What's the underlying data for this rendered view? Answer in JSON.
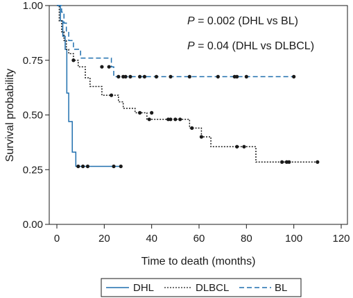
{
  "chart_data": {
    "type": "line",
    "subtype": "kaplan-meier-survival",
    "xlabel": "Time to death (months)",
    "ylabel": "Survival probability",
    "xlim": [
      0,
      120
    ],
    "ylim": [
      0,
      1
    ],
    "x_ticks": [
      0,
      20,
      40,
      60,
      80,
      100,
      120
    ],
    "x_tick_labels": [
      "0",
      "20",
      "40",
      "60",
      "80",
      "100",
      "120"
    ],
    "y_ticks": [
      0,
      0.25,
      0.5,
      0.75,
      1.0
    ],
    "y_tick_labels": [
      "0.00",
      "0.25",
      "0.50",
      "0.75",
      "1.00"
    ],
    "grid": false,
    "legend_position": "bottom",
    "annotations": [
      {
        "label": "P = 0.002 (DHL vs BL)",
        "italic_prefix": "P"
      },
      {
        "label": "P = 0.04 (DHL vs DLBCL)",
        "italic_prefix": "P"
      }
    ],
    "series": [
      {
        "name": "DHL",
        "color": "#1f6fae",
        "line_style": "solid",
        "steps": [
          [
            0,
            1.0
          ],
          [
            1.5,
            0.93
          ],
          [
            2.5,
            0.86
          ],
          [
            3.5,
            0.8
          ],
          [
            4.2,
            0.6
          ],
          [
            5.0,
            0.47
          ],
          [
            6.5,
            0.33
          ],
          [
            8.0,
            0.265
          ],
          [
            27,
            0.265
          ]
        ],
        "censored": [
          [
            9,
            0.265
          ],
          [
            11,
            0.265
          ],
          [
            13,
            0.265
          ],
          [
            24,
            0.265
          ],
          [
            27,
            0.265
          ]
        ]
      },
      {
        "name": "DLBCL",
        "color": "#1a1a1a",
        "line_style": "dotted",
        "steps": [
          [
            0,
            1.0
          ],
          [
            1,
            0.93
          ],
          [
            2,
            0.88
          ],
          [
            3,
            0.84
          ],
          [
            4,
            0.8
          ],
          [
            5,
            0.78
          ],
          [
            7,
            0.75
          ],
          [
            9,
            0.72
          ],
          [
            12,
            0.67
          ],
          [
            14,
            0.63
          ],
          [
            19,
            0.59
          ],
          [
            26,
            0.56
          ],
          [
            28,
            0.53
          ],
          [
            33,
            0.51
          ],
          [
            38,
            0.48
          ],
          [
            56,
            0.44
          ],
          [
            61,
            0.4
          ],
          [
            65,
            0.355
          ],
          [
            75,
            0.355
          ],
          [
            84,
            0.285
          ],
          [
            110,
            0.285
          ]
        ],
        "censored": [
          [
            7,
            0.75
          ],
          [
            23,
            0.59
          ],
          [
            35,
            0.51
          ],
          [
            40,
            0.51
          ],
          [
            39,
            0.48
          ],
          [
            47,
            0.48
          ],
          [
            48,
            0.48
          ],
          [
            50,
            0.48
          ],
          [
            52,
            0.48
          ],
          [
            57,
            0.44
          ],
          [
            61,
            0.4
          ],
          [
            76,
            0.355
          ],
          [
            79,
            0.355
          ],
          [
            95,
            0.285
          ],
          [
            97,
            0.285
          ],
          [
            98,
            0.285
          ],
          [
            110,
            0.285
          ]
        ]
      },
      {
        "name": "BL",
        "color": "#1f6fae",
        "line_style": "dashed",
        "steps": [
          [
            0,
            1.0
          ],
          [
            2,
            0.97
          ],
          [
            3,
            0.92
          ],
          [
            4,
            0.88
          ],
          [
            5,
            0.84
          ],
          [
            7,
            0.8
          ],
          [
            10,
            0.76
          ],
          [
            23,
            0.72
          ],
          [
            24,
            0.675
          ],
          [
            100,
            0.675
          ]
        ],
        "censored": [
          [
            19,
            0.72
          ],
          [
            22,
            0.72
          ],
          [
            26,
            0.675
          ],
          [
            28,
            0.675
          ],
          [
            29,
            0.675
          ],
          [
            31,
            0.675
          ],
          [
            35,
            0.675
          ],
          [
            37,
            0.675
          ],
          [
            42,
            0.675
          ],
          [
            48,
            0.675
          ],
          [
            56,
            0.675
          ],
          [
            68,
            0.675
          ],
          [
            75,
            0.675
          ],
          [
            76,
            0.675
          ],
          [
            80,
            0.675
          ],
          [
            100,
            0.675
          ]
        ]
      }
    ]
  }
}
